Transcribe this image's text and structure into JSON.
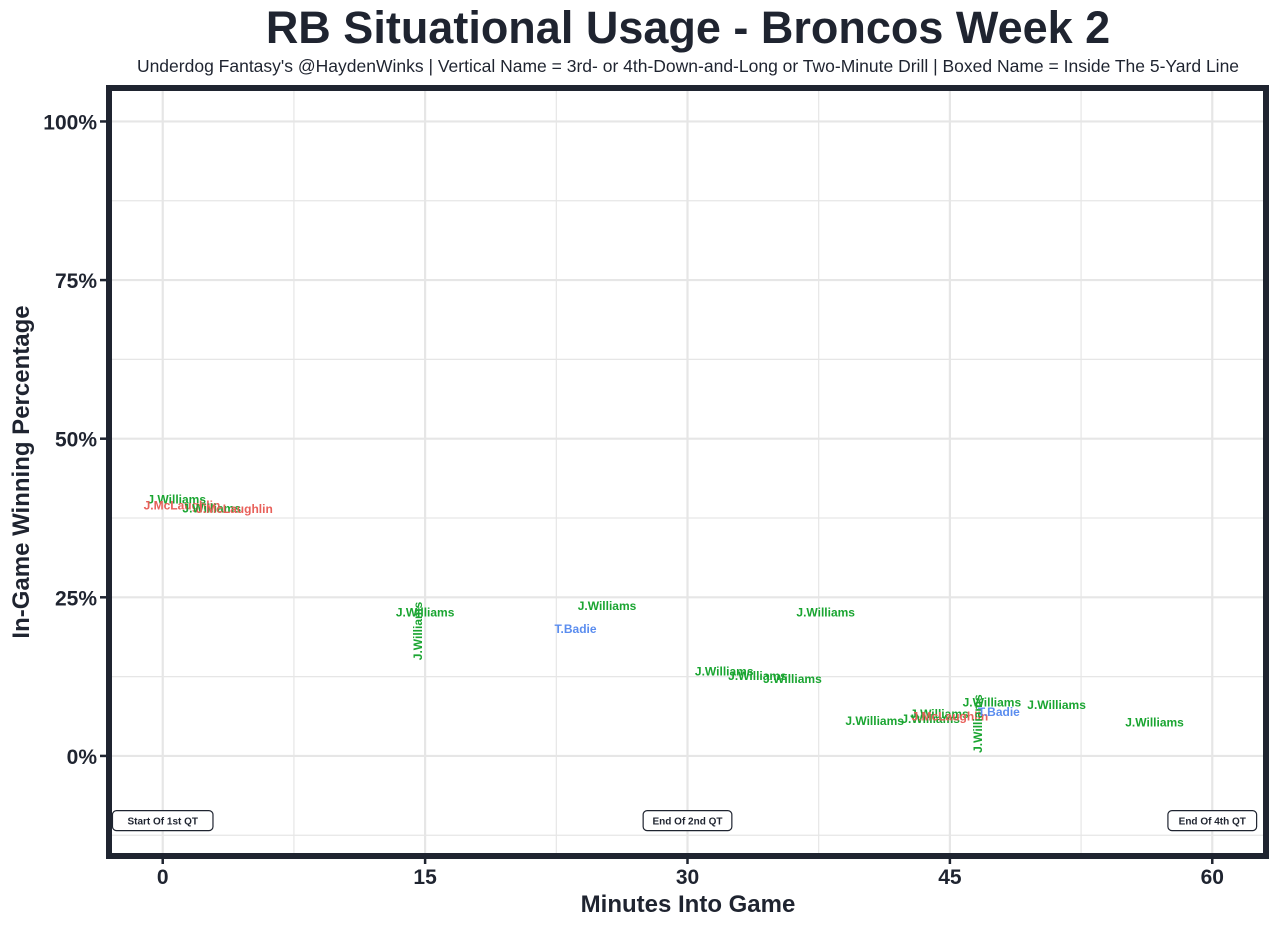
{
  "chart_data": {
    "type": "scatter",
    "title": "RB Situational Usage - Broncos Week 2",
    "subtitle": "Underdog Fantasy's @HaydenWinks | Vertical Name = 3rd- or 4th-Down-and-Long or Two-Minute Drill | Boxed Name = Inside The 5-Yard Line",
    "xlabel": "Minutes Into Game",
    "ylabel": "In-Game Winning Percentage",
    "xlim": [
      -2.9,
      62.9
    ],
    "ylim": [
      -15.3,
      104.8
    ],
    "x_ticks": [
      0,
      15,
      30,
      45,
      60
    ],
    "x_tick_labels": [
      "0",
      "15",
      "30",
      "45",
      "60"
    ],
    "y_ticks": [
      0,
      25,
      50,
      75,
      100
    ],
    "y_tick_labels": [
      "0%",
      "25%",
      "50%",
      "75%",
      "100%"
    ],
    "grid": true,
    "colors": {
      "J.Williams": "#1aa531",
      "J.McLaughlin": "#e8605a",
      "T.Badie": "#5b8def",
      "frame": "#1f2430",
      "grid": "#e6e6e6"
    },
    "points": [
      {
        "name": "J.Williams",
        "x": 0.8,
        "y": 40.4,
        "vertical": false
      },
      {
        "name": "J.McLaughlin",
        "x": 1.1,
        "y": 39.5,
        "vertical": false
      },
      {
        "name": "J.Williams",
        "x": 2.8,
        "y": 39.0,
        "vertical": false
      },
      {
        "name": "J.McLaughlin",
        "x": 4.1,
        "y": 38.9,
        "vertical": false
      },
      {
        "name": "J.Williams",
        "x": 14.6,
        "y": 19.7,
        "vertical": true
      },
      {
        "name": "J.Williams",
        "x": 15.0,
        "y": 22.6,
        "vertical": false
      },
      {
        "name": "J.Williams",
        "x": 25.4,
        "y": 23.6,
        "vertical": false
      },
      {
        "name": "T.Badie",
        "x": 23.6,
        "y": 20.0,
        "vertical": false
      },
      {
        "name": "J.Williams",
        "x": 37.9,
        "y": 22.6,
        "vertical": false
      },
      {
        "name": "J.Williams",
        "x": 32.1,
        "y": 13.3,
        "vertical": false
      },
      {
        "name": "J.Williams",
        "x": 34.0,
        "y": 12.6,
        "vertical": false
      },
      {
        "name": "J.Williams",
        "x": 36.0,
        "y": 12.1,
        "vertical": false
      },
      {
        "name": "J.Williams",
        "x": 40.7,
        "y": 5.5,
        "vertical": false
      },
      {
        "name": "J.Williams",
        "x": 43.9,
        "y": 5.8,
        "vertical": false
      },
      {
        "name": "J.Williams",
        "x": 44.4,
        "y": 6.6,
        "vertical": false
      },
      {
        "name": "J.McLaughlin",
        "x": 45.0,
        "y": 6.2,
        "vertical": false
      },
      {
        "name": "J.Williams",
        "x": 46.6,
        "y": 5.1,
        "vertical": true
      },
      {
        "name": "J.Williams",
        "x": 47.4,
        "y": 8.4,
        "vertical": false
      },
      {
        "name": "T.Badie",
        "x": 47.8,
        "y": 6.9,
        "vertical": false
      },
      {
        "name": "J.Williams",
        "x": 51.1,
        "y": 8.0,
        "vertical": false
      },
      {
        "name": "J.Williams",
        "x": 56.7,
        "y": 5.3,
        "vertical": false
      }
    ],
    "annotations": [
      {
        "text": "Start Of 1st QT",
        "x": 0,
        "y": -10.2
      },
      {
        "text": "End Of 2nd QT",
        "x": 30,
        "y": -10.2
      },
      {
        "text": "End Of 4th QT",
        "x": 60,
        "y": -10.2
      }
    ]
  }
}
